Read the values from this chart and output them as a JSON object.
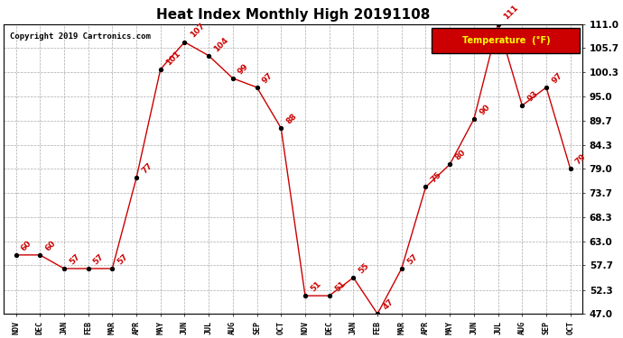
{
  "title": "Heat Index Monthly High 20191108",
  "copyright": "Copyright 2019 Cartronics.com",
  "legend_label": "Temperature  (°F)",
  "months": [
    "NOV",
    "DEC",
    "JAN",
    "FEB",
    "MAR",
    "APR",
    "MAY",
    "JUN",
    "JUL",
    "AUG",
    "SEP",
    "OCT",
    "NOV",
    "DEC",
    "JAN",
    "FEB",
    "MAR",
    "APR",
    "MAY",
    "JUN",
    "JUL",
    "AUG",
    "SEP",
    "OCT"
  ],
  "values": [
    60,
    60,
    57,
    57,
    57,
    77,
    101,
    107,
    104,
    99,
    97,
    88,
    51,
    51,
    55,
    47,
    57,
    75,
    80,
    90,
    111,
    93,
    97,
    79
  ],
  "ylim": [
    47.0,
    111.0
  ],
  "yticks": [
    47.0,
    52.3,
    57.7,
    63.0,
    68.3,
    73.7,
    79.0,
    84.3,
    89.7,
    95.0,
    100.3,
    105.7,
    111.0
  ],
  "line_color": "#cc0000",
  "marker_color": "#000000",
  "background_color": "#ffffff",
  "grid_color": "#aaaaaa",
  "title_fontsize": 11,
  "annotation_fontsize": 6.5,
  "legend_bg": "#cc0000",
  "legend_fg": "#ffff00"
}
